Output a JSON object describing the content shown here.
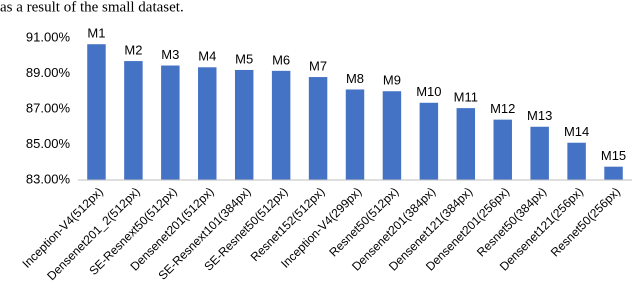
{
  "page_text": "as a result of the small dataset.",
  "chart_data": {
    "type": "bar",
    "categories": [
      "Inception-V4(512px)",
      "Densenet201_2(512px)",
      "SE-Resnext50(512px)",
      "Densenet201(512px)",
      "SE-Resnext101(384px)",
      "SE-Resnet50(512px)",
      "Resnet152(512px)",
      "Inception-V4(299px)",
      "Resnet50(512px)",
      "Densenet201(384px)",
      "Densenet121(384px)",
      "Densenet201(256px)",
      "Resnet50(384px)",
      "Densenet121(256px)",
      "Resnet50(256px)"
    ],
    "bar_labels": [
      "M1",
      "M2",
      "M3",
      "M4",
      "M5",
      "M6",
      "M7",
      "M8",
      "M9",
      "M10",
      "M11",
      "M12",
      "M13",
      "M14",
      "M15"
    ],
    "values": [
      90.65,
      89.7,
      89.45,
      89.35,
      89.2,
      89.15,
      88.8,
      88.1,
      88.0,
      87.35,
      87.05,
      86.4,
      86.0,
      85.1,
      83.75
    ],
    "color": "#4472c4",
    "ylim": [
      83,
      91
    ],
    "yticks": [
      {
        "value": 83,
        "label": "83.00%"
      },
      {
        "value": 85,
        "label": "85.00%"
      },
      {
        "value": 87,
        "label": "87.00%"
      },
      {
        "value": 89,
        "label": "89.00%"
      },
      {
        "value": 91,
        "label": "91.00%"
      }
    ],
    "grid": false
  }
}
